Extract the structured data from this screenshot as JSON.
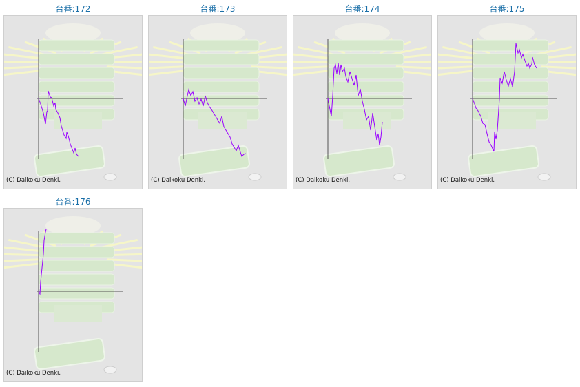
{
  "copyright": "(C) Daikoku Denki.",
  "colors": {
    "line": "#9900ff",
    "axis": "#555555",
    "title": "#1a6fa8",
    "background": "#e4e4e4"
  },
  "chart_data": [
    {
      "type": "line",
      "title": "台番:172",
      "x": [
        0,
        3,
        7,
        10,
        12,
        13,
        14,
        17,
        19,
        22,
        24,
        25,
        28,
        31,
        33,
        37,
        40,
        41,
        43,
        46,
        49,
        51,
        53,
        55,
        58
      ],
      "values": [
        0,
        -8,
        -21,
        -37,
        -19,
        -18,
        11,
        2,
        1,
        -11,
        -6,
        -16,
        -21,
        -28,
        -40,
        -53,
        -58,
        -49,
        -54,
        -66,
        -74,
        -79,
        -72,
        -81,
        -84
      ]
    },
    {
      "type": "line",
      "title": "台番:173",
      "x": [
        0,
        3,
        6,
        8,
        11,
        14,
        17,
        20,
        23,
        26,
        29,
        32,
        35,
        38,
        41,
        44,
        47,
        50,
        53,
        56,
        59,
        62,
        65,
        68,
        71,
        74,
        77,
        80,
        83,
        85,
        88,
        91
      ],
      "values": [
        0,
        -11,
        4,
        13,
        4,
        10,
        -4,
        1,
        -8,
        -1,
        -11,
        4,
        -6,
        -12,
        -16,
        -21,
        -26,
        -31,
        -36,
        -26,
        -41,
        -46,
        -51,
        -56,
        -66,
        -71,
        -76,
        -68,
        -78,
        -84,
        -81,
        -80
      ]
    },
    {
      "type": "line",
      "title": "台番:174",
      "x": [
        0,
        3,
        5,
        7,
        9,
        11,
        13,
        15,
        17,
        19,
        21,
        24,
        26,
        29,
        32,
        35,
        38,
        41,
        44,
        47,
        50,
        53,
        56,
        59,
        62,
        65,
        68,
        71,
        73,
        75,
        77,
        79
      ],
      "values": [
        0,
        -16,
        -26,
        4,
        44,
        49,
        36,
        52,
        34,
        49,
        39,
        44,
        32,
        24,
        39,
        29,
        19,
        34,
        4,
        14,
        -4,
        -16,
        -31,
        -26,
        -46,
        -21,
        -41,
        -61,
        -51,
        -68,
        -56,
        -34
      ]
    },
    {
      "type": "line",
      "title": "台番:175",
      "x": [
        0,
        3,
        5,
        8,
        12,
        15,
        18,
        21,
        24,
        27,
        31,
        32,
        34,
        36,
        39,
        40,
        43,
        46,
        49,
        52,
        55,
        58,
        61,
        63,
        66,
        68,
        71,
        73,
        76,
        79,
        81,
        83,
        86,
        87,
        90,
        93
      ],
      "values": [
        0,
        -8,
        -14,
        -18,
        -26,
        -36,
        -38,
        -51,
        -63,
        -68,
        -77,
        -48,
        -59,
        -46,
        0,
        30,
        22,
        39,
        27,
        18,
        29,
        17,
        39,
        80,
        66,
        71,
        59,
        64,
        55,
        47,
        51,
        44,
        50,
        60,
        49,
        44
      ]
    },
    {
      "type": "line",
      "title": "台番:176",
      "x": [
        0,
        2,
        3,
        5,
        7,
        8,
        10,
        11
      ],
      "values": [
        0,
        -4,
        14,
        34,
        54,
        74,
        86,
        90
      ]
    }
  ]
}
